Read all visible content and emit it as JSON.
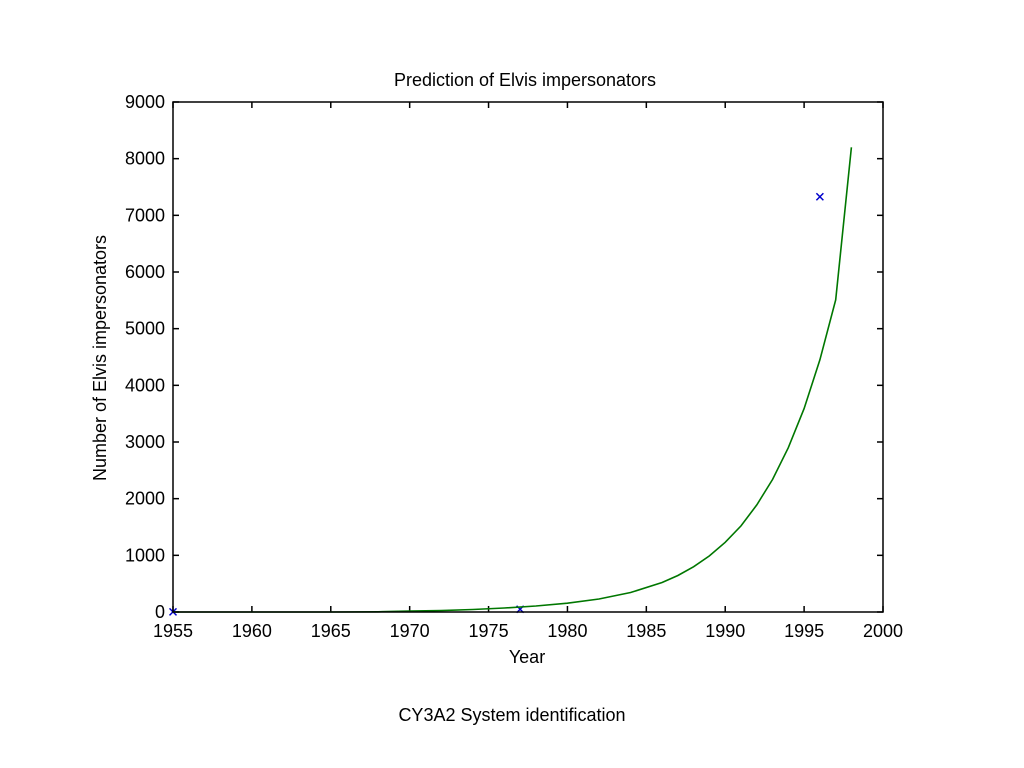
{
  "chart_data": {
    "type": "line",
    "title": "Prediction of Elvis impersonators",
    "xlabel": "Year",
    "ylabel": "Number of Elvis impersonators",
    "xlim": [
      1955,
      2000
    ],
    "ylim": [
      0,
      9000
    ],
    "xticks": [
      1955,
      1960,
      1965,
      1970,
      1975,
      1980,
      1985,
      1990,
      1995,
      2000
    ],
    "yticks": [
      0,
      1000,
      2000,
      3000,
      4000,
      5000,
      6000,
      7000,
      8000,
      9000
    ],
    "grid": false,
    "series": [
      {
        "style": "markers-x",
        "color": "#0000cc",
        "x": [
          1955,
          1977,
          1996
        ],
        "y": [
          2,
          48,
          7328
        ]
      },
      {
        "style": "line",
        "color": "#007700",
        "x": [
          1955,
          1960,
          1965,
          1968,
          1970,
          1972,
          1974,
          1976,
          1978,
          1980,
          1982,
          1984,
          1986,
          1987,
          1988,
          1989,
          1990,
          1991,
          1992,
          1993,
          1994,
          1995,
          1996,
          1997,
          1998
        ],
        "y": [
          0,
          0,
          0,
          3,
          15,
          25,
          45,
          70,
          105,
          155,
          230,
          345,
          520,
          645,
          800,
          990,
          1230,
          1520,
          1890,
          2340,
          2900,
          3590,
          4450,
          5510,
          8200
        ]
      }
    ]
  },
  "footer": {
    "caption": "CY3A2  System identification"
  }
}
